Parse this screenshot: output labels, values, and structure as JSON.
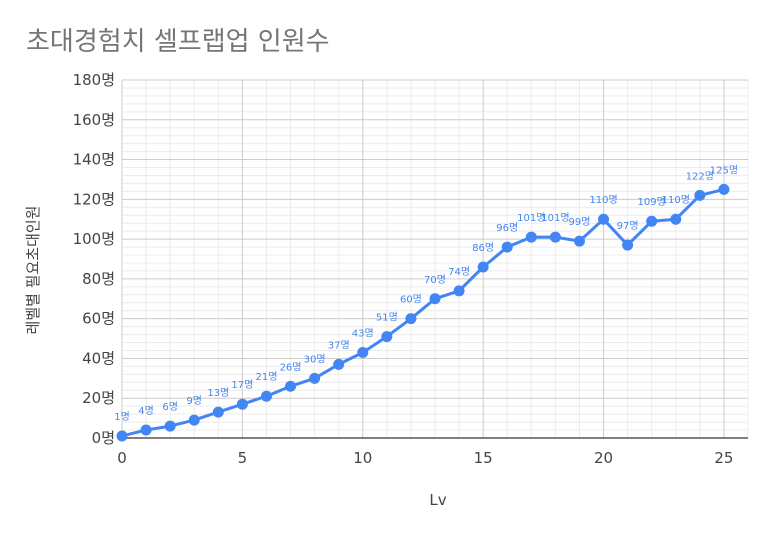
{
  "chart_data": {
    "type": "line",
    "title": "초대경험치 셀프랩업 인원수",
    "xlabel": "Lv",
    "ylabel": "레벨별 필요초대인원",
    "x": [
      0,
      1,
      2,
      3,
      4,
      5,
      6,
      7,
      8,
      9,
      10,
      11,
      12,
      13,
      14,
      15,
      16,
      17,
      18,
      19,
      20,
      21,
      22,
      23,
      24,
      25
    ],
    "series": [
      {
        "values": [
          1,
          4,
          6,
          9,
          13,
          17,
          21,
          26,
          30,
          37,
          43,
          51,
          60,
          70,
          74,
          86,
          96,
          101,
          101,
          99,
          110,
          97,
          109,
          110,
          122,
          125
        ],
        "data_labels": [
          "1명",
          "4명",
          "6명",
          "9명",
          "13명",
          "17명",
          "21명",
          "26명",
          "30명",
          "37명",
          "43명",
          "51명",
          "60명",
          "70명",
          "74명",
          "86명",
          "96명",
          "101명",
          "101명",
          "99명",
          "110명",
          "97명",
          "109명",
          "110명",
          "122명",
          "125명"
        ]
      }
    ],
    "xlim": [
      0,
      26
    ],
    "ylim": [
      0,
      180
    ],
    "x_ticks": [
      0,
      5,
      10,
      15,
      20,
      25
    ],
    "x_tick_labels": [
      "0",
      "5",
      "10",
      "15",
      "20",
      "25"
    ],
    "y_ticks": [
      0,
      20,
      40,
      60,
      80,
      100,
      120,
      140,
      160,
      180
    ],
    "y_tick_labels": [
      "0명",
      "20명",
      "40명",
      "60명",
      "80명",
      "100명",
      "120명",
      "140명",
      "160명",
      "180명"
    ],
    "grid": true,
    "legend": "none",
    "color": "#4285f4"
  }
}
